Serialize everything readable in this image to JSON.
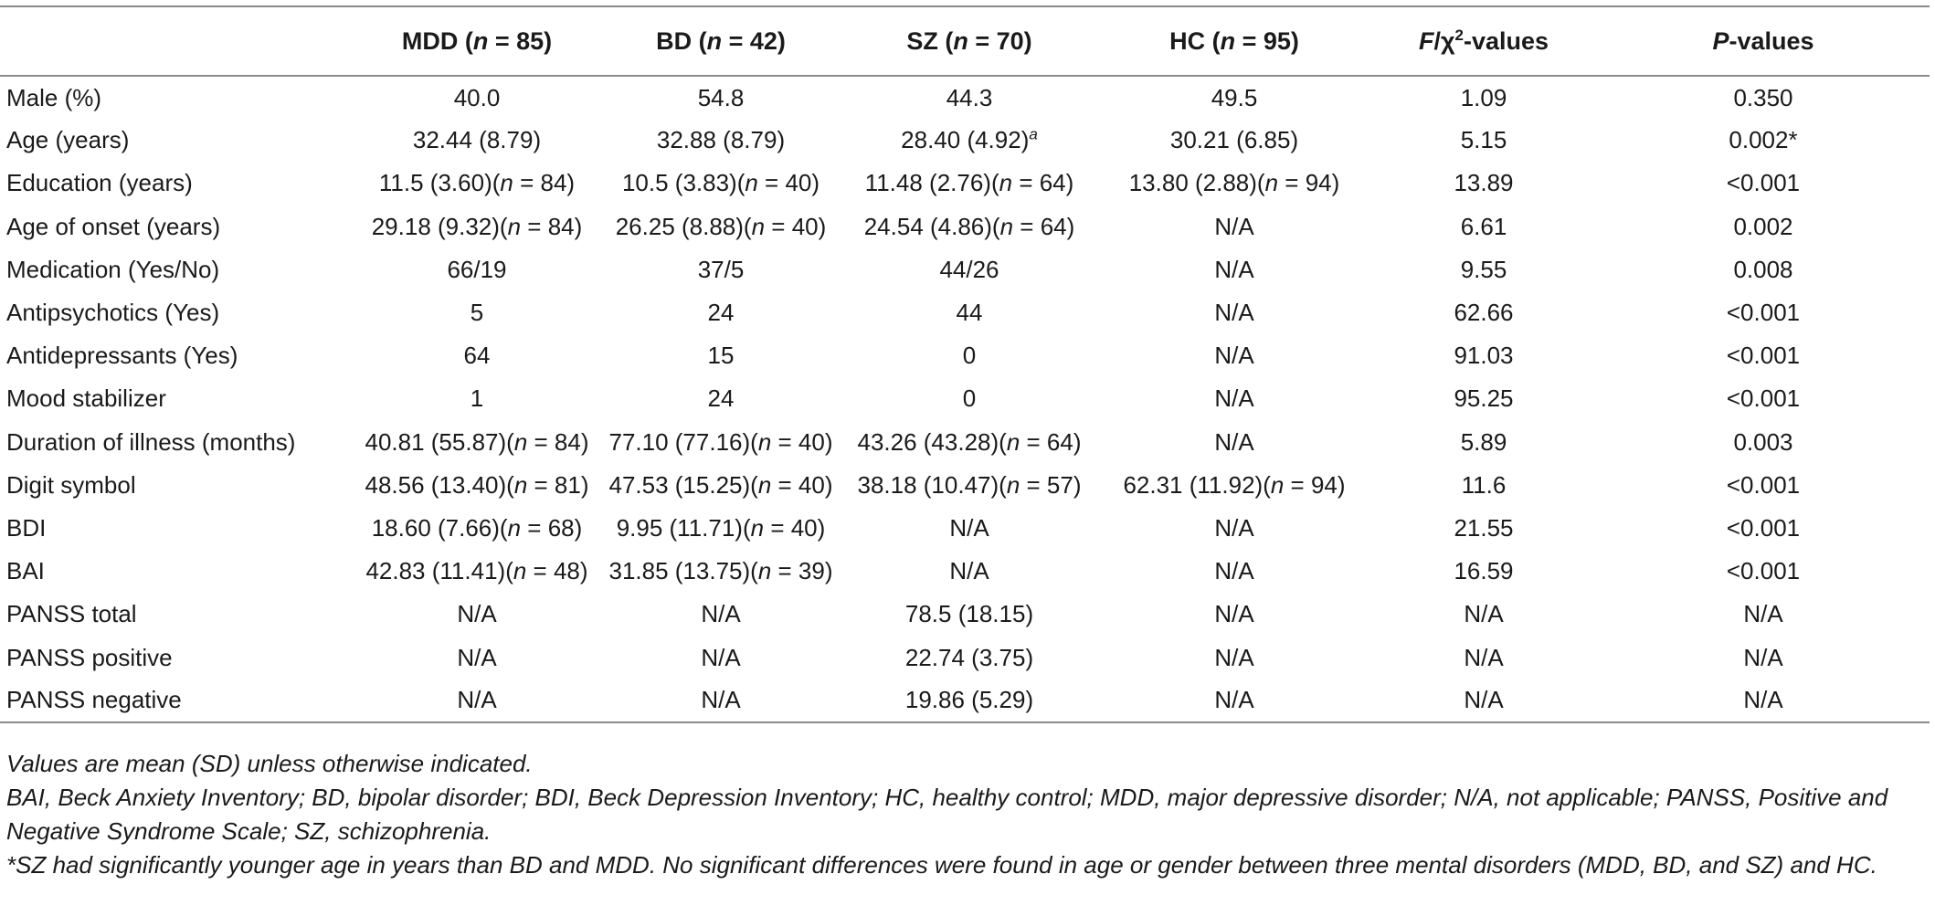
{
  "table": {
    "header": {
      "rowlabel": "",
      "mdd": "MDD (n = 85)",
      "bd": "BD (n = 42)",
      "sz": "SZ (n = 70)",
      "hc": "HC (n = 95)",
      "stat": "F/χ2-values",
      "p": "P-values"
    },
    "rows": [
      {
        "label": "Male (%)",
        "mdd": "40.0",
        "bd": "54.8",
        "sz": "44.3",
        "hc": "49.5",
        "stat": "1.09",
        "p": "0.350"
      },
      {
        "label": "Age (years)",
        "mdd": "32.44 (8.79)",
        "bd": "32.88 (8.79)",
        "sz": "28.40 (4.92)",
        "sz_sup": "a",
        "hc": "30.21 (6.85)",
        "stat": "5.15",
        "p": "0.002*"
      },
      {
        "label": "Education (years)",
        "mdd": "11.5 (3.60)(n = 84)",
        "bd": "10.5 (3.83)(n = 40)",
        "sz": "11.48 (2.76)(n = 64)",
        "hc": "13.80 (2.88)(n = 94)",
        "stat": "13.89",
        "p": "<0.001"
      },
      {
        "label": "Age of onset (years)",
        "mdd": "29.18 (9.32)(n = 84)",
        "bd": "26.25 (8.88)(n = 40)",
        "sz": "24.54 (4.86)(n = 64)",
        "hc": "N/A",
        "stat": "6.61",
        "p": "0.002"
      },
      {
        "label": "Medication (Yes/No)",
        "mdd": "66/19",
        "bd": "37/5",
        "sz": "44/26",
        "hc": "N/A",
        "stat": "9.55",
        "p": "0.008"
      },
      {
        "label": "Antipsychotics (Yes)",
        "mdd": "5",
        "bd": "24",
        "sz": "44",
        "hc": "N/A",
        "stat": "62.66",
        "p": "<0.001"
      },
      {
        "label": "Antidepressants (Yes)",
        "mdd": "64",
        "bd": "15",
        "sz": "0",
        "hc": "N/A",
        "stat": "91.03",
        "p": "<0.001"
      },
      {
        "label": "Mood stabilizer",
        "mdd": "1",
        "bd": "24",
        "sz": "0",
        "hc": "N/A",
        "stat": "95.25",
        "p": "<0.001"
      },
      {
        "label": "Duration of illness (months)",
        "mdd": "40.81 (55.87)(n = 84)",
        "bd": "77.10 (77.16)(n = 40)",
        "sz": "43.26 (43.28)(n = 64)",
        "hc": "N/A",
        "stat": "5.89",
        "p": "0.003"
      },
      {
        "label": "Digit symbol",
        "mdd": "48.56 (13.40)(n = 81)",
        "bd": "47.53 (15.25)(n = 40)",
        "sz": "38.18 (10.47)(n = 57)",
        "hc": "62.31 (11.92)(n = 94)",
        "stat": "11.6",
        "p": "<0.001"
      },
      {
        "label": "BDI",
        "mdd": "18.60 (7.66)(n = 68)",
        "bd": "9.95 (11.71)(n = 40)",
        "sz": "N/A",
        "hc": "N/A",
        "stat": "21.55",
        "p": "<0.001"
      },
      {
        "label": "BAI",
        "mdd": "42.83 (11.41)(n = 48)",
        "bd": "31.85 (13.75)(n = 39)",
        "sz": "N/A",
        "hc": "N/A",
        "stat": "16.59",
        "p": "<0.001"
      },
      {
        "label": "PANSS total",
        "mdd": "N/A",
        "bd": "N/A",
        "sz": "78.5 (18.15)",
        "hc": "N/A",
        "stat": "N/A",
        "p": "N/A"
      },
      {
        "label": "PANSS positive",
        "mdd": "N/A",
        "bd": "N/A",
        "sz": "22.74 (3.75)",
        "hc": "N/A",
        "stat": "N/A",
        "p": "N/A"
      },
      {
        "label": "PANSS negative",
        "mdd": "N/A",
        "bd": "N/A",
        "sz": "19.86 (5.29)",
        "hc": "N/A",
        "stat": "N/A",
        "p": "N/A"
      }
    ]
  },
  "footnotes": {
    "note1": "Values are mean (SD) unless otherwise indicated.",
    "note2": "BAI, Beck Anxiety Inventory; BD, bipolar disorder; BDI, Beck Depression Inventory; HC, healthy control; MDD, major depressive disorder; N/A, not applicable; PANSS, Positive and Negative Syndrome Scale; SZ, schizophrenia.",
    "note3": "*SZ had significantly younger age in years than BD and MDD. No significant differences were found in age or gender between three mental disorders (MDD, BD, and SZ) and HC."
  }
}
